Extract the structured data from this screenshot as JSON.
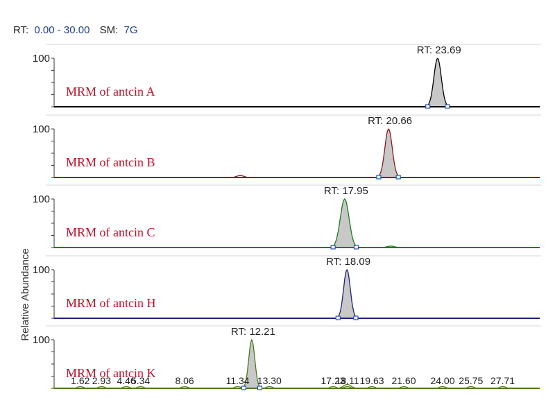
{
  "header": {
    "rt_key": "RT:",
    "rt_value": "0.00 - 30.00",
    "sm_key": "SM:",
    "sm_value": "7G"
  },
  "chart_data": {
    "type": "line",
    "ylabel": "Relative Abundance",
    "xlim": [
      0,
      30
    ],
    "ylim": [
      0,
      100
    ],
    "y_tick_label": "100",
    "label_color": "#c0102a",
    "fill_color": "#c8c8c8",
    "panels": [
      {
        "label": "MRM of antcin A",
        "line_color": "#000000",
        "peak_rt": 23.69,
        "peak_label": "RT: 23.69",
        "peak_height": 100,
        "width": 0.55,
        "minor": []
      },
      {
        "label": "MRM of antcin B",
        "line_color": "#8b1a1a",
        "peak_rt": 20.66,
        "peak_label": "RT: 20.66",
        "peak_height": 100,
        "width": 0.55,
        "minor": [
          {
            "rt": 11.5,
            "height": 4
          }
        ]
      },
      {
        "label": "MRM of antcin C",
        "line_color": "#1f7a1f",
        "peak_rt": 17.95,
        "peak_label": "RT: 17.95",
        "peak_height": 100,
        "width": 0.65,
        "minor": [
          {
            "rt": 20.8,
            "height": 3
          }
        ]
      },
      {
        "label": "MRM of antcin H",
        "line_color": "#1a237e",
        "peak_rt": 18.09,
        "peak_label": "RT: 18.09",
        "peak_height": 100,
        "width": 0.5,
        "minor": []
      },
      {
        "label": "MRM of antcin K",
        "line_color": "#4d7a1a",
        "peak_rt": 12.21,
        "peak_label": "RT: 12.21",
        "peak_height": 100,
        "width": 0.45,
        "minor": [
          {
            "rt": 18.11,
            "height": 8
          }
        ],
        "annotations": [
          "1.62",
          "2.93",
          "4.46",
          "5.34",
          "8.06",
          "11.34",
          "13.30",
          "17.23",
          "18.11",
          "19.63",
          "21.60",
          "24.00",
          "25.75",
          "27.71"
        ],
        "annotation_rt": [
          1.62,
          2.93,
          4.46,
          5.34,
          8.06,
          11.34,
          13.3,
          17.23,
          18.11,
          19.63,
          21.6,
          24.0,
          25.75,
          27.71
        ]
      }
    ]
  }
}
